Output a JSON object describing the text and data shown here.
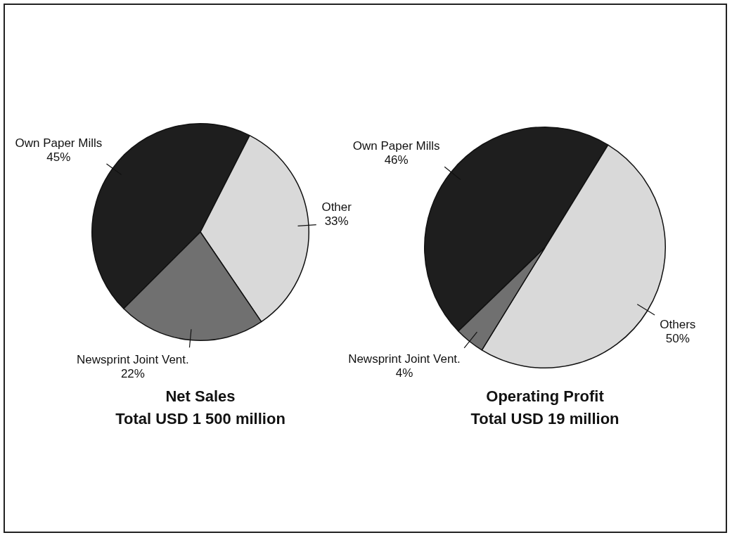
{
  "chart_data": [
    {
      "type": "pie",
      "title": "Net Sales",
      "subtitle": "Total USD 1 500 million",
      "categories": [
        "Own Paper Mills",
        "Other",
        "Newsprint Joint Vent."
      ],
      "values": [
        45,
        33,
        22
      ],
      "value_labels": [
        "45%",
        "33%",
        "22%"
      ],
      "colors": [
        "#1e1e1e",
        "#d9d9d9",
        "#707070"
      ],
      "legend": false
    },
    {
      "type": "pie",
      "title": "Operating Profit",
      "subtitle": "Total USD 19 million",
      "categories": [
        "Own Paper Mills",
        "Others",
        "Newsprint Joint Vent."
      ],
      "values": [
        46,
        50,
        4
      ],
      "value_labels": [
        "46%",
        "50%",
        "4%"
      ],
      "colors": [
        "#1e1e1e",
        "#d9d9d9",
        "#707070"
      ],
      "legend": false
    }
  ]
}
